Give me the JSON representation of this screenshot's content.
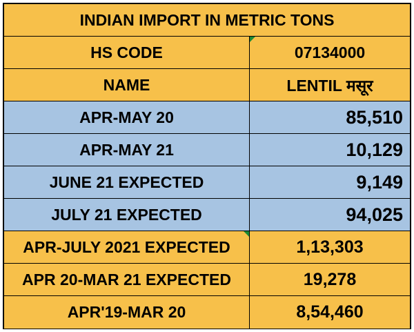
{
  "table": {
    "title": "INDIAN IMPORT IN METRIC TONS",
    "hs_code": {
      "label": "HS CODE",
      "value": "07134000"
    },
    "name": {
      "label": "NAME",
      "value": "LENTIL मसूर"
    },
    "rows": [
      {
        "label": "APR-MAY 20",
        "value": "85,510"
      },
      {
        "label": "APR-MAY 21",
        "value": "10,129"
      },
      {
        "label": "JUNE 21 EXPECTED",
        "value": "9,149"
      },
      {
        "label": "JULY 21 EXPECTED",
        "value": "94,025"
      },
      {
        "label": "APR-JULY 2021 EXPECTED",
        "value": "1,13,303"
      },
      {
        "label": "APR 20-MAR 21 EXPECTED",
        "value": "19,278"
      },
      {
        "label": "APR'19-MAR 20",
        "value": "8,54,460"
      }
    ]
  },
  "colors": {
    "yellow": "#f7c04a",
    "blue": "#a7c4e2",
    "comment_marker": "#1d8a36"
  }
}
